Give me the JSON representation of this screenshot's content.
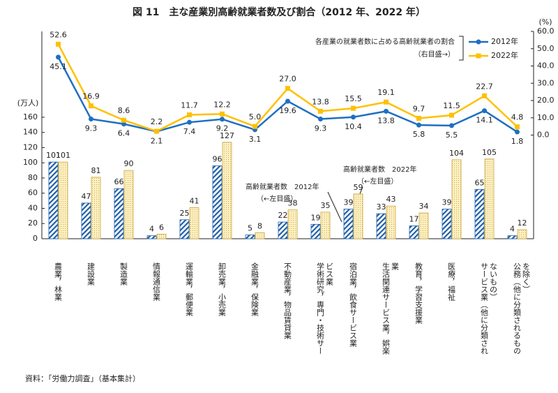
{
  "chart_data": {
    "type": "bar_line",
    "title": "図 11　主な産業別高齢就業者数及び割合（2012 年、2022 年）",
    "y_label": "(万人)",
    "y2_label": "(%)",
    "source": "資料：「労働力調査」（基本集計）",
    "legend_title": "各産業の就業者数に占める高齢就業者の割合",
    "legend_note": "（右目盛→）",
    "annotations": [
      {
        "text": "高齢就業者数　2012年",
        "note": "（←左目盛）"
      },
      {
        "text": "高齢就業者数　2022年",
        "note": "（←左目盛）"
      }
    ],
    "categories": [
      "農業，林業",
      "建設業",
      "製造業",
      "情報通信業",
      "運輸業，郵便業",
      "卸売業，小売業",
      "金融業，保険業",
      "不動産業，物品賃貸業",
      "学術研究，専門・技術サービス業",
      "宿泊業，飲食サービス業",
      "生活関連サービス業，娯楽業",
      "教育，学習支援業",
      "医療，福祉",
      "サービス業（他に分類されないもの）",
      "公務（他に分類されるものを除く）"
    ],
    "series": [
      {
        "type": "bar",
        "color": "#1f5fa8",
        "values": [
          101,
          47,
          66,
          4,
          25,
          96,
          5,
          22,
          19,
          39,
          33,
          17,
          39,
          65,
          4
        ]
      },
      {
        "type": "bar",
        "color": "#f0d27a",
        "values": [
          101,
          81,
          90,
          6,
          41,
          127,
          8,
          38,
          35,
          59,
          43,
          34,
          104,
          105,
          12
        ]
      },
      {
        "type": "line",
        "name": "2012年",
        "axis": "y2",
        "color": "#1f6fc0",
        "values": [
          45.1,
          9.3,
          6.4,
          2.1,
          7.4,
          9.2,
          3.1,
          19.6,
          9.3,
          10.4,
          13.8,
          5.8,
          5.5,
          14.1,
          1.8
        ],
        "value_labels": [
          "45.1",
          "9.3",
          "6.4",
          "2.1",
          "7.4",
          "9.2",
          "3.1",
          "19.6",
          "9.3",
          "10.4",
          "13.8",
          "5.8",
          "5.5",
          "14.1",
          "1.8"
        ]
      },
      {
        "type": "line",
        "name": "2022年",
        "axis": "y2",
        "color": "#ffc000",
        "values": [
          52.6,
          16.9,
          8.6,
          2.2,
          11.7,
          12.2,
          5.0,
          27.0,
          13.8,
          15.5,
          19.1,
          9.7,
          11.5,
          22.7,
          4.8
        ],
        "value_labels": [
          "52.6",
          "16.9",
          "8.6",
          "2.2",
          "11.7",
          "12.2",
          "5.0",
          "27.0",
          "13.8",
          "15.5",
          "19.1",
          "9.7",
          "11.5",
          "22.7",
          "4.8"
        ]
      }
    ],
    "ylim": [
      0,
      273
    ],
    "yticks": [
      0,
      20,
      40,
      60,
      80,
      100,
      120,
      140,
      160
    ],
    "y2lim": [
      -60,
      60
    ],
    "y2ticks": [
      {
        "value": 0,
        "label": "0.0"
      },
      {
        "value": 10,
        "label": "10.0"
      },
      {
        "value": 20,
        "label": "20.0"
      },
      {
        "value": 30,
        "label": "30.0"
      },
      {
        "value": 40,
        "label": "40.0"
      },
      {
        "value": 50,
        "label": "50.0"
      },
      {
        "value": 60,
        "label": "60.0"
      }
    ],
    "grid": false
  }
}
